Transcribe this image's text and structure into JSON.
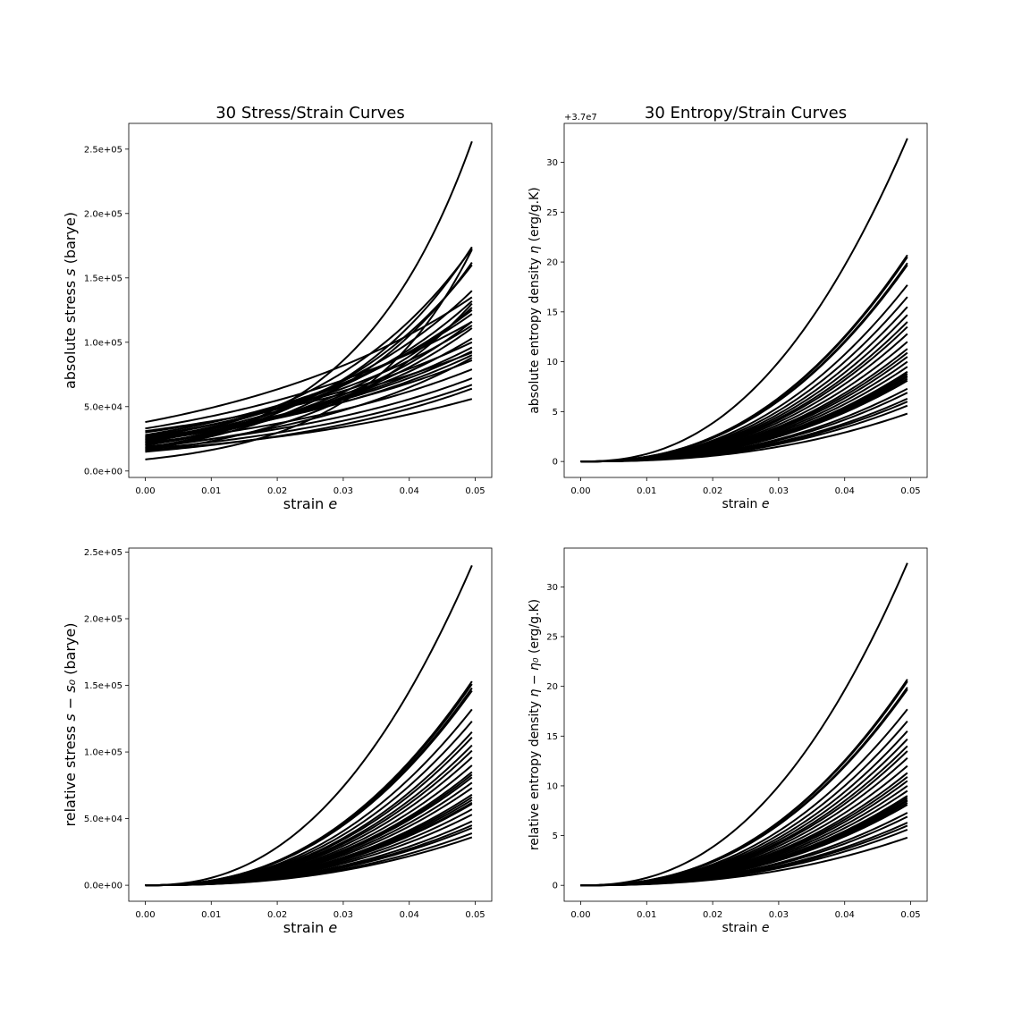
{
  "chart_data": [
    {
      "type": "line",
      "title": "30 Stress/Strain Curves",
      "xlabel": "strain",
      "xlabel_math": "e",
      "ylabel": "absolute stress",
      "ylabel_math": "s",
      "ylabel_unit": "(barye)",
      "xlim": [
        -0.0025,
        0.0525
      ],
      "ylim": [
        -5000,
        270000
      ],
      "xticks": [
        0,
        0.01,
        0.02,
        0.03,
        0.04,
        0.05
      ],
      "xticklabels": [
        "0.00",
        "0.01",
        "0.02",
        "0.03",
        "0.04",
        "0.05"
      ],
      "yticks": [
        0,
        50000,
        100000,
        150000,
        200000,
        250000
      ],
      "yticklabels": [
        "0.0e+00",
        "5.0e+04",
        "1.0e+05",
        "1.5e+05",
        "2.0e+05",
        "2.5e+05"
      ],
      "series_model": "y = y0 * exp(k * x), x from 0 to 0.0495",
      "curves_y0_end": [
        [
          9000,
          172000
        ],
        [
          16000,
          256000
        ],
        [
          38000,
          135000
        ],
        [
          33000,
          116000
        ],
        [
          31000,
          92000
        ],
        [
          30000,
          100000
        ],
        [
          28000,
          122000
        ],
        [
          27000,
          113000
        ],
        [
          26000,
          86000
        ],
        [
          26000,
          125000
        ],
        [
          25000,
          96000
        ],
        [
          25000,
          93000
        ],
        [
          24000,
          140000
        ],
        [
          24000,
          90000
        ],
        [
          23000,
          103000
        ],
        [
          23000,
          132000
        ],
        [
          22000,
          79000
        ],
        [
          22000,
          173000
        ],
        [
          21000,
          116000
        ],
        [
          21000,
          111000
        ],
        [
          20000,
          160000
        ],
        [
          20000,
          127000
        ],
        [
          19000,
          72000
        ],
        [
          18000,
          174000
        ],
        [
          18000,
          88000
        ],
        [
          17000,
          67000
        ],
        [
          17000,
          162000
        ],
        [
          16000,
          56000
        ],
        [
          15000,
          130000
        ],
        [
          15000,
          64000
        ]
      ]
    },
    {
      "type": "line",
      "title": "30 Entropy/Strain Curves",
      "xlabel": "strain",
      "xlabel_math": "e",
      "ylabel": "absolute entropy density",
      "ylabel_math": "η",
      "ylabel_unit": "(erg/g.K)",
      "offset_text": "+3.7e7",
      "xlim": [
        -0.0025,
        0.0525
      ],
      "ylim": [
        -1.6,
        33.9
      ],
      "xticks": [
        0,
        0.01,
        0.02,
        0.03,
        0.04,
        0.05
      ],
      "xticklabels": [
        "0.00",
        "0.01",
        "0.02",
        "0.03",
        "0.04",
        "0.05"
      ],
      "yticks": [
        0,
        5,
        10,
        15,
        20,
        25,
        30
      ],
      "yticklabels": [
        "0",
        "5",
        "10",
        "15",
        "20",
        "25",
        "30"
      ],
      "series_model": "y = A * x^p, x from 0 to 0.0495",
      "curves_end": [
        32.4,
        20.7,
        20.5,
        19.9,
        19.7,
        17.7,
        16.5,
        15.5,
        14.7,
        14.0,
        13.5,
        12.8,
        12.0,
        11.3,
        10.9,
        10.5,
        10.0,
        9.5,
        9.0,
        8.8,
        8.6,
        8.5,
        8.3,
        8.1,
        7.3,
        6.9,
        6.3,
        6.0,
        5.6,
        4.8
      ]
    },
    {
      "type": "line",
      "title": "",
      "xlabel": "strain",
      "xlabel_math": "e",
      "ylabel": "relative stress",
      "ylabel_math": "s − s₀",
      "ylabel_unit": "(barye)",
      "xlim": [
        -0.0025,
        0.0525
      ],
      "ylim": [
        -12000,
        253000
      ],
      "xticks": [
        0,
        0.01,
        0.02,
        0.03,
        0.04,
        0.05
      ],
      "xticklabels": [
        "0.00",
        "0.01",
        "0.02",
        "0.03",
        "0.04",
        "0.05"
      ],
      "yticks": [
        0,
        50000,
        100000,
        150000,
        200000,
        250000
      ],
      "yticklabels": [
        "0.0e+00",
        "5.0e+04",
        "1.0e+05",
        "1.5e+05",
        "2.0e+05",
        "2.5e+05"
      ],
      "series_model": "y = A * x^p, x from 0 to 0.0495",
      "curves_end": [
        240000,
        153000,
        151000,
        148000,
        146000,
        132000,
        123000,
        115000,
        111000,
        105000,
        101000,
        96000,
        90000,
        85000,
        83000,
        81000,
        77000,
        73000,
        68000,
        66000,
        64000,
        62000,
        61000,
        57000,
        53000,
        48000,
        45000,
        43000,
        39000,
        36000
      ]
    },
    {
      "type": "line",
      "title": "",
      "xlabel": "strain",
      "xlabel_math": "e",
      "ylabel": "relative entropy density",
      "ylabel_math": "η − η₀",
      "ylabel_unit": "(erg/g.K)",
      "xlim": [
        -0.0025,
        0.0525
      ],
      "ylim": [
        -1.6,
        33.9
      ],
      "xticks": [
        0,
        0.01,
        0.02,
        0.03,
        0.04,
        0.05
      ],
      "xticklabels": [
        "0.00",
        "0.01",
        "0.02",
        "0.03",
        "0.04",
        "0.05"
      ],
      "yticks": [
        0,
        5,
        10,
        15,
        20,
        25,
        30
      ],
      "yticklabels": [
        "0",
        "5",
        "10",
        "15",
        "20",
        "25",
        "30"
      ],
      "series_model": "y = A * x^p, x from 0 to 0.0495",
      "curves_end": [
        32.4,
        20.7,
        20.5,
        19.9,
        19.7,
        17.7,
        16.5,
        15.5,
        14.7,
        14.0,
        13.5,
        12.8,
        12.0,
        11.3,
        10.9,
        10.5,
        10.0,
        9.5,
        9.0,
        8.8,
        8.6,
        8.5,
        8.3,
        8.1,
        7.3,
        6.9,
        6.3,
        6.0,
        5.6,
        4.8
      ]
    }
  ]
}
